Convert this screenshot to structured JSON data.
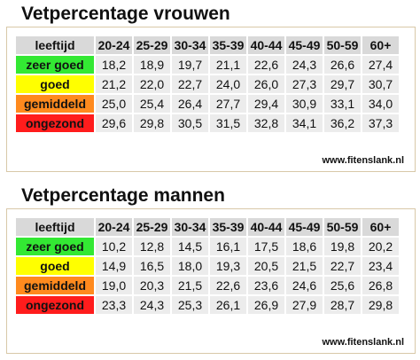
{
  "sections": [
    {
      "title": "Vetpercentage vrouwen",
      "table": {
        "header": [
          "leeftijd",
          "20-24",
          "25-29",
          "30-34",
          "35-39",
          "40-44",
          "45-49",
          "50-59",
          "60+"
        ],
        "rows": [
          {
            "label": "zeer goed",
            "cells": [
              "18,2",
              "18,9",
              "19,7",
              "21,1",
              "22,6",
              "24,3",
              "26,6",
              "27,4"
            ]
          },
          {
            "label": "goed",
            "cells": [
              "21,2",
              "22,0",
              "22,7",
              "24,0",
              "26,0",
              "27,3",
              "29,7",
              "30,7"
            ]
          },
          {
            "label": "gemiddeld",
            "cells": [
              "25,0",
              "25,4",
              "26,4",
              "27,7",
              "29,4",
              "30,9",
              "33,1",
              "34,0"
            ]
          },
          {
            "label": "ongezond",
            "cells": [
              "29,6",
              "29,8",
              "30,5",
              "31,5",
              "32,8",
              "34,1",
              "36,2",
              "37,3"
            ]
          }
        ]
      },
      "source": "www.fitenslank.nl"
    },
    {
      "title": "Vetpercentage mannen",
      "table": {
        "header": [
          "leeftijd",
          "20-24",
          "25-29",
          "30-34",
          "35-39",
          "40-44",
          "45-49",
          "50-59",
          "60+"
        ],
        "rows": [
          {
            "label": "zeer goed",
            "cells": [
              "10,2",
              "12,8",
              "14,5",
              "16,1",
              "17,5",
              "18,6",
              "19,8",
              "20,2"
            ]
          },
          {
            "label": "goed",
            "cells": [
              "14,9",
              "16,5",
              "18,0",
              "19,3",
              "20,5",
              "21,5",
              "22,7",
              "23,4"
            ]
          },
          {
            "label": "gemiddeld",
            "cells": [
              "19,0",
              "20,3",
              "21,5",
              "22,6",
              "23,6",
              "24,6",
              "25,6",
              "26,8"
            ]
          },
          {
            "label": "ongezond",
            "cells": [
              "23,3",
              "24,3",
              "25,3",
              "26,1",
              "26,9",
              "27,9",
              "28,7",
              "29,8"
            ]
          }
        ]
      },
      "source": "www.fitenslank.nl"
    }
  ]
}
